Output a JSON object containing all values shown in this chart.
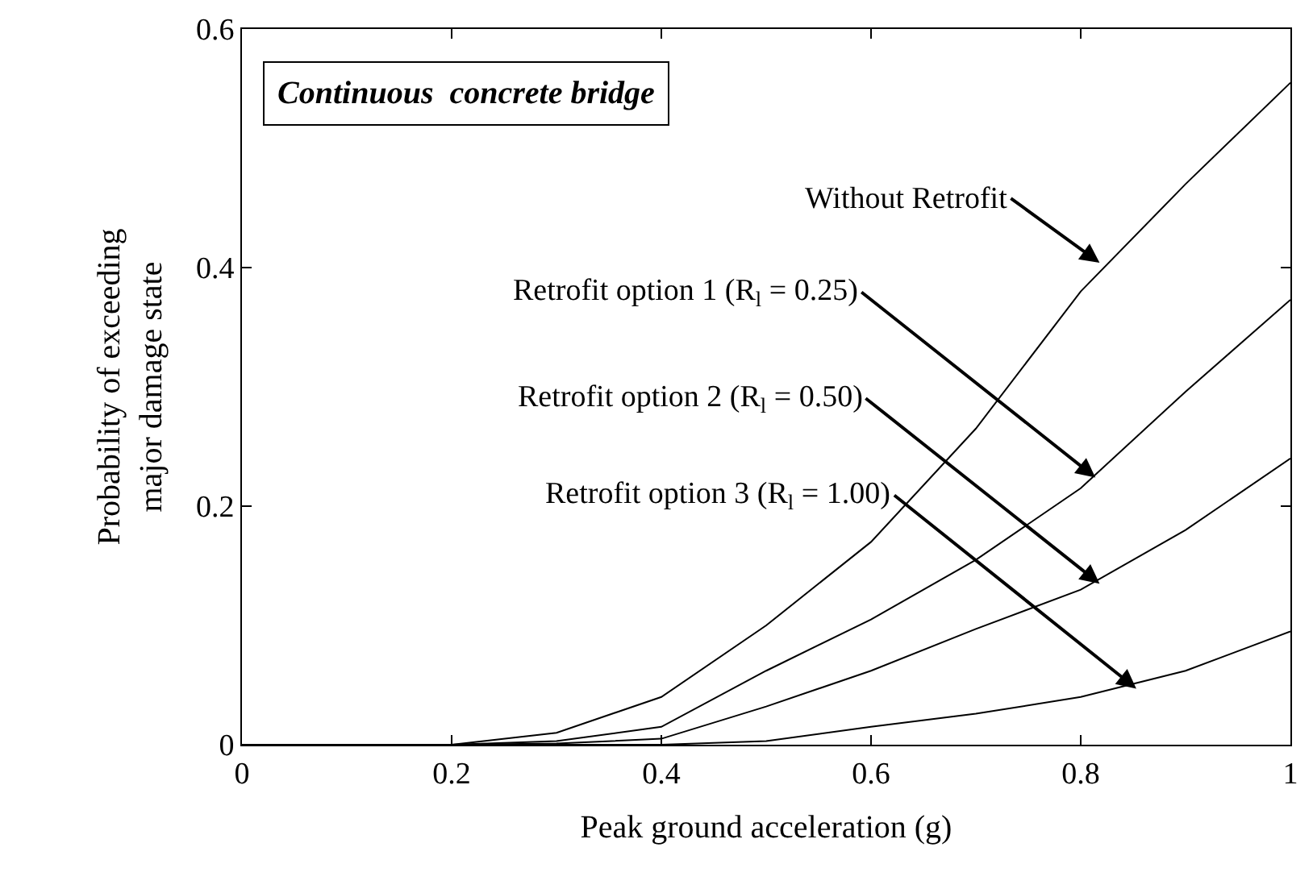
{
  "chart_data": {
    "type": "line",
    "title": "Continuous  concrete bridge",
    "xlabel": "Peak ground acceleration (g)",
    "ylabel": "Probability of exceeding\nmajor damage state",
    "x": [
      0,
      0.1,
      0.2,
      0.3,
      0.4,
      0.5,
      0.6,
      0.7,
      0.8,
      0.9,
      1.0
    ],
    "series": [
      {
        "color": "#000000",
        "values": [
          0,
          0,
          0,
          0.01,
          0.04,
          0.1,
          0.17,
          0.265,
          0.38,
          0.47,
          0.555
        ]
      },
      {
        "color": "#000000",
        "values": [
          0,
          0,
          0,
          0.003,
          0.015,
          0.062,
          0.105,
          0.155,
          0.215,
          0.296,
          0.373
        ]
      },
      {
        "color": "#000000",
        "values": [
          0,
          0,
          0,
          0.001,
          0.005,
          0.032,
          0.062,
          0.097,
          0.13,
          0.18,
          0.24
        ]
      },
      {
        "color": "#000000",
        "values": [
          0,
          0,
          0,
          0,
          0,
          0.003,
          0.015,
          0.026,
          0.04,
          0.062,
          0.095
        ]
      }
    ],
    "annotations": [
      {
        "text": "Without Retrofit",
        "x": 0.818,
        "y": 0.404
      },
      {
        "text": "Retrofit option 1 (R$_{l}$ = 0.25)",
        "x": 0.814,
        "y": 0.224
      },
      {
        "text": "Retrofit option 2 (R$_{l}$ = 0.50)",
        "x": 0.818,
        "y": 0.135
      },
      {
        "text": "Retrofit option 3 (R$_{l}$ = 1.00)",
        "x": 0.853,
        "y": 0.047
      }
    ],
    "xlim": [
      0,
      1
    ],
    "ylim": [
      0,
      0.6
    ],
    "xticks": [
      0,
      0.2,
      0.4,
      0.6,
      0.8,
      1
    ],
    "yticks": [
      0,
      0.2,
      0.4,
      0.6
    ],
    "marker": "none",
    "line_style": "solid"
  }
}
